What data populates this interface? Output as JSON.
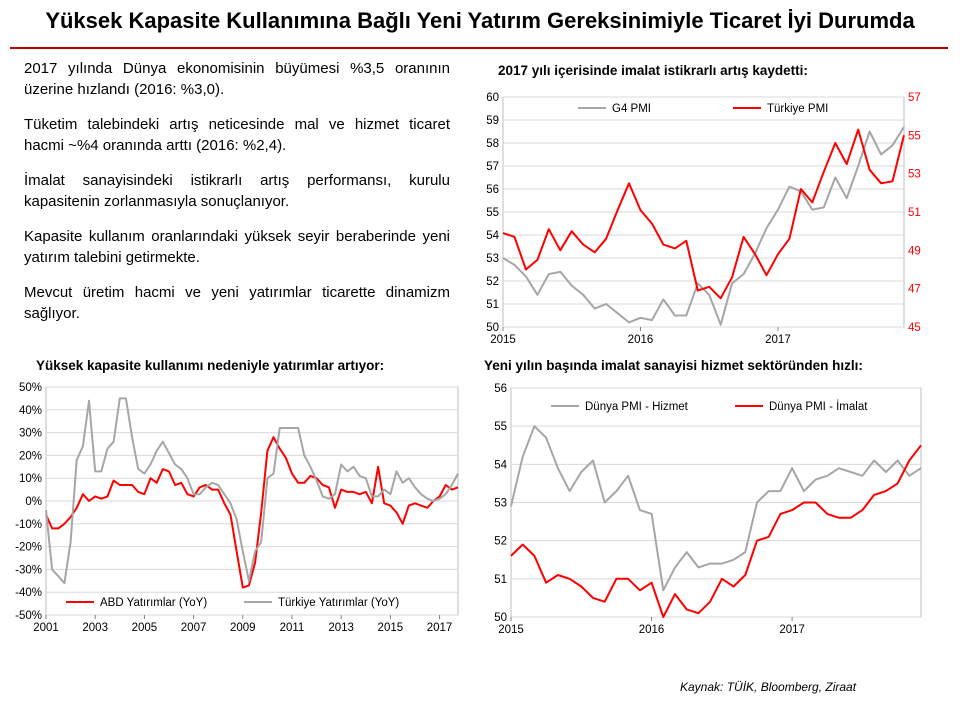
{
  "page": {
    "title": "Yüksek Kapasite Kullanımına Bağlı Yeni Yatırım Gereksinimiyle Ticaret İyi Durumda",
    "bullets": [
      "2017 yılında Dünya ekonomisinin büyümesi %3,5 oranının üzerine hızlandı (2016: %3,0).",
      "Tüketim talebindeki artış neticesinde mal ve hizmet ticaret hacmi ~%4 oranında arttı (2016: %2,4).",
      "İmalat sanayisindeki istikrarlı artış performansı, kurulu kapasitenin zorlanmasıyla sonuçlanıyor.",
      "Kapasite kullanım oranlarındaki yüksek seyir beraberinde yeni yatırım talebini getirmekte.",
      "Mevcut üretim hacmi ve yeni yatırımlar ticarette dinamizm sağlıyor."
    ],
    "source": "Kaynak: TÜİK, Bloomberg, Ziraat"
  },
  "chart_data": [
    {
      "id": "pmi",
      "type": "line",
      "title": "2017 yılı içerisinde imalat istikrarlı artış kaydetti:",
      "x_start": 2015,
      "x_end": 2017.917,
      "x_ticks": [
        {
          "label": "2015",
          "value": 2015
        },
        {
          "label": "2016",
          "value": 2016
        },
        {
          "label": "2017",
          "value": 2017
        }
      ],
      "ylim": [
        50,
        60
      ],
      "y_ticks": [
        "50",
        "51",
        "52",
        "53",
        "54",
        "55",
        "56",
        "57",
        "58",
        "59",
        "60"
      ],
      "ylim_right": [
        45,
        57
      ],
      "y_ticks_right": [
        "45",
        "47",
        "49",
        "51",
        "53",
        "55",
        "57"
      ],
      "legend": "top",
      "series": [
        {
          "name": "G4 PMI",
          "color": "#a6a6a6",
          "axis": "left",
          "values": [
            53.0,
            52.7,
            52.2,
            51.4,
            52.3,
            52.4,
            51.8,
            51.4,
            50.8,
            51.0,
            50.6,
            50.2,
            50.4,
            50.3,
            51.2,
            50.5,
            50.5,
            51.9,
            51.4,
            50.1,
            51.9,
            52.3,
            53.2,
            54.3,
            55.1,
            56.1,
            55.9,
            55.1,
            55.2,
            56.5,
            55.6,
            57.0,
            58.5,
            57.5,
            57.9,
            58.7
          ]
        },
        {
          "name": "Türkiye PMI",
          "color": "#ff0000",
          "axis": "right",
          "values": [
            49.9,
            49.7,
            48.0,
            48.5,
            50.1,
            49.0,
            50.0,
            49.3,
            48.9,
            49.6,
            51.1,
            52.5,
            51.1,
            50.4,
            49.3,
            49.1,
            49.5,
            46.9,
            47.1,
            46.5,
            47.6,
            49.7,
            48.8,
            47.7,
            48.8,
            49.6,
            52.2,
            51.5,
            53.1,
            54.6,
            53.5,
            55.3,
            53.2,
            52.5,
            52.6,
            55.0
          ]
        }
      ]
    },
    {
      "id": "investment",
      "type": "line",
      "title": "Yüksek kapasite kullanımı nedeniyle yatırımlar artıyor:",
      "x_start": 2001,
      "x_end": 2017.75,
      "x_ticks": [
        {
          "label": "2001",
          "value": 2001
        },
        {
          "label": "2003",
          "value": 2003
        },
        {
          "label": "2005",
          "value": 2005
        },
        {
          "label": "2007",
          "value": 2007
        },
        {
          "label": "2009",
          "value": 2009
        },
        {
          "label": "2011",
          "value": 2011
        },
        {
          "label": "2013",
          "value": 2013
        },
        {
          "label": "2015",
          "value": 2015
        },
        {
          "label": "2017",
          "value": 2017
        }
      ],
      "ylim": [
        -50,
        50
      ],
      "y_ticks": [
        "-50%",
        "-40%",
        "-30%",
        "-20%",
        "-10%",
        "0%",
        "10%",
        "20%",
        "30%",
        "40%",
        "50%"
      ],
      "legend": "bottom",
      "series": [
        {
          "name": "ABD Yatırımlar (YoY)",
          "color": "#ff0000",
          "values": [
            -6,
            -12,
            -12,
            -10,
            -7,
            -3,
            3,
            0,
            2,
            1,
            2,
            9,
            7,
            7,
            7,
            4,
            3,
            10,
            8,
            14,
            13,
            7,
            8,
            3,
            2,
            6,
            7,
            5,
            5,
            -1,
            -6,
            -22,
            -38,
            -37,
            -27,
            -5,
            22,
            28,
            23,
            19,
            12,
            8,
            8,
            11,
            10,
            7,
            6,
            -3,
            5,
            4,
            4,
            3,
            4,
            -1,
            15,
            -1,
            -2,
            -5,
            -10,
            -2,
            -1,
            -2,
            -3,
            0,
            2,
            7,
            5,
            6
          ]
        },
        {
          "name": "Türkiye Yatırımlar (YoY)",
          "color": "#a6a6a6",
          "values": [
            -4,
            -30,
            -33,
            -36,
            -18,
            18,
            24,
            44,
            13,
            13,
            23,
            26,
            45,
            45,
            28,
            14,
            12,
            16,
            22,
            26,
            21,
            16,
            14,
            10,
            3,
            3,
            6,
            8,
            7,
            3,
            -1,
            -8,
            -22,
            -35,
            -22,
            -18,
            10,
            12,
            32,
            32,
            32,
            32,
            20,
            15,
            9,
            2,
            1,
            3,
            16,
            13,
            15,
            11,
            10,
            2,
            2,
            5,
            3,
            13,
            8,
            10,
            6,
            3,
            1,
            0,
            1,
            3,
            7,
            12
          ]
        }
      ]
    },
    {
      "id": "world-pmi",
      "type": "line",
      "title": "Yeni yılın başında imalat sanayisi hizmet sektöründen hızlı:",
      "x_start": 2015,
      "x_end": 2017.917,
      "x_ticks": [
        {
          "label": "2015",
          "value": 2015
        },
        {
          "label": "2016",
          "value": 2016
        },
        {
          "label": "2017",
          "value": 2017
        }
      ],
      "ylim": [
        50,
        56
      ],
      "y_ticks": [
        "50",
        "51",
        "52",
        "53",
        "54",
        "55",
        "56"
      ],
      "legend": "top",
      "series": [
        {
          "name": "Dünya PMI - Hizmet",
          "color": "#a6a6a6",
          "values": [
            52.9,
            54.2,
            55.0,
            54.7,
            53.9,
            53.3,
            53.8,
            54.1,
            53.0,
            53.3,
            53.7,
            52.8,
            52.7,
            50.7,
            51.3,
            51.7,
            51.3,
            51.4,
            51.4,
            51.5,
            51.7,
            53.0,
            53.3,
            53.3,
            53.9,
            53.3,
            53.6,
            53.7,
            53.9,
            53.8,
            53.7,
            54.1,
            53.8,
            54.1,
            53.7,
            53.9
          ]
        },
        {
          "name": "Dünya PMI - İmalat",
          "color": "#ff0000",
          "values": [
            51.6,
            51.9,
            51.6,
            50.9,
            51.1,
            51.0,
            50.8,
            50.5,
            50.4,
            51.0,
            51.0,
            50.7,
            50.9,
            50.0,
            50.6,
            50.2,
            50.1,
            50.4,
            51.0,
            50.8,
            51.1,
            52.0,
            52.1,
            52.7,
            52.8,
            53.0,
            53.0,
            52.7,
            52.6,
            52.6,
            52.8,
            53.2,
            53.3,
            53.5,
            54.1,
            54.5
          ]
        }
      ]
    }
  ]
}
